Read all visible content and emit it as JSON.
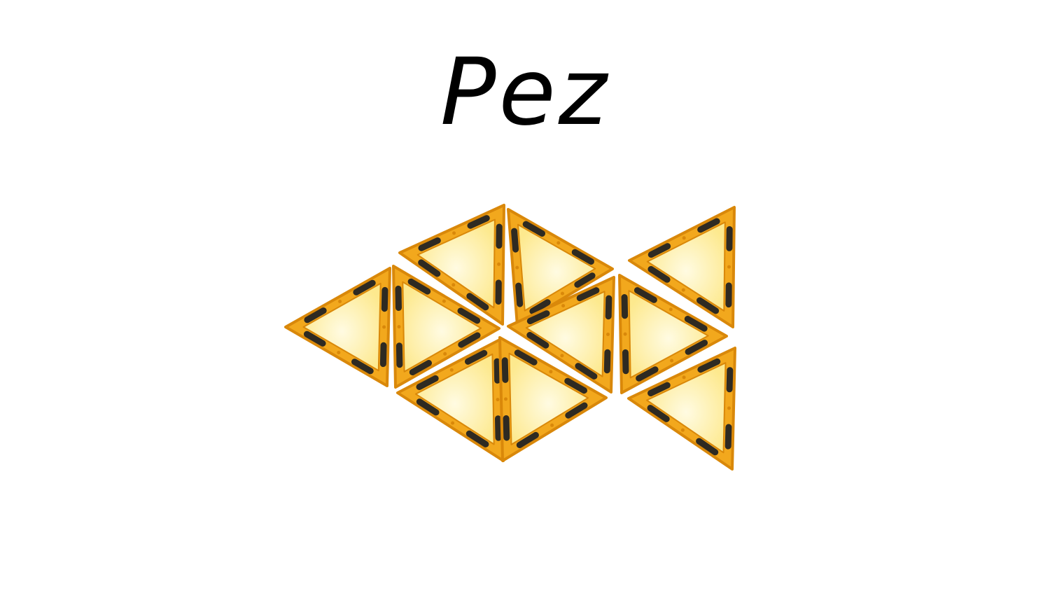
{
  "slide": {
    "title": "Pez"
  },
  "figure": {
    "subject": "fish-shape",
    "tile_count": 10,
    "colors": {
      "frame": "#f2a81d",
      "frame_dark": "#d9880a",
      "fill_light": "#fffbe2",
      "fill_mid": "#fde98e",
      "magnet": "#2e2a22"
    }
  }
}
